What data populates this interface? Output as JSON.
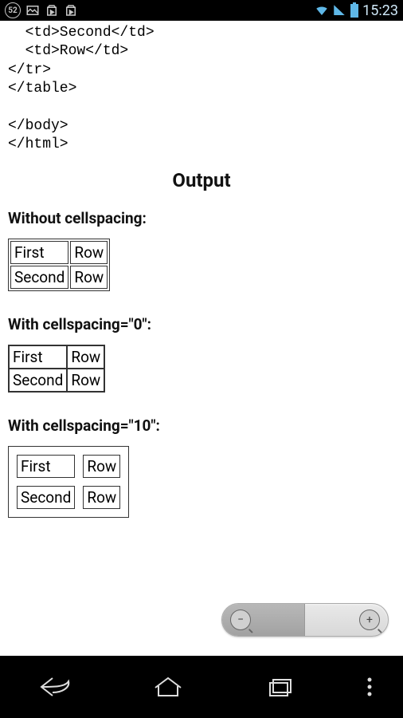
{
  "status_bar": {
    "badge": "52",
    "time": "15:23",
    "icon_color": "#c7c7c7",
    "signal_color": "#5fb8e8"
  },
  "code": {
    "lines": [
      "  <td>Second</td>",
      "  <td>Row</td>",
      "</tr>",
      "</table>",
      "",
      "</body>",
      "</html>"
    ]
  },
  "output_heading": "Output",
  "sections": [
    {
      "heading": "Without cellspacing:",
      "cellspacing": 2
    },
    {
      "heading": "With cellspacing=\"0\":",
      "cellspacing": 0
    },
    {
      "heading": "With cellspacing=\"10\":",
      "cellspacing": 10
    }
  ],
  "table_data": {
    "rows": [
      [
        "First",
        "Row"
      ],
      [
        "Second",
        "Row"
      ]
    ]
  },
  "zoom": {
    "minus": "−",
    "plus": "+"
  }
}
